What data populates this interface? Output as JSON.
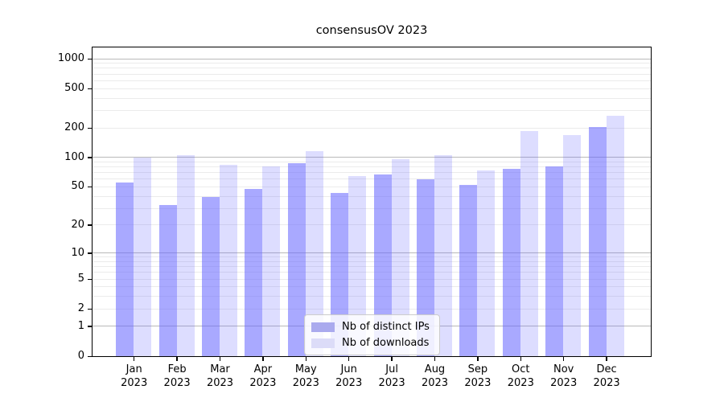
{
  "title": "consensusOV 2023",
  "chart_data": {
    "type": "bar",
    "title": "consensusOV 2023",
    "xlabel": "",
    "ylabel": "",
    "categories": [
      "Jan 2023",
      "Feb 2023",
      "Mar 2023",
      "Apr 2023",
      "May 2023",
      "Jun 2023",
      "Jul 2023",
      "Aug 2023",
      "Sep 2023",
      "Oct 2023",
      "Nov 2023",
      "Dec 2023"
    ],
    "series": [
      {
        "name": "Nb of distinct IPs",
        "color": "rgba(102,102,255,0.56)",
        "legend_color": "#aaaaee",
        "values": [
          56,
          33,
          40,
          48,
          89,
          44,
          68,
          60,
          53,
          78,
          82,
          204
        ]
      },
      {
        "name": "Nb of downloads",
        "color": "rgba(102,102,255,0.22)",
        "legend_color": "#dcdcf8",
        "values": [
          100,
          107,
          85,
          82,
          117,
          65,
          97,
          106,
          74,
          187,
          170,
          270
        ]
      }
    ],
    "yscale": "log1p",
    "ylim": [
      0,
      1320
    ],
    "y_tick_values": [
      0,
      1,
      2,
      5,
      10,
      20,
      50,
      100,
      200,
      500,
      1000
    ],
    "y_major_gridlines": [
      1,
      10,
      100,
      1000
    ],
    "y_minor_gridline_decades": [
      1,
      10,
      100
    ],
    "grid": true,
    "legend_position": "lower center",
    "colors": {
      "major_grid": "#b9b9b9",
      "minor_grid": "#ebebeb",
      "axis": "#000000",
      "background": "#ffffff"
    }
  }
}
